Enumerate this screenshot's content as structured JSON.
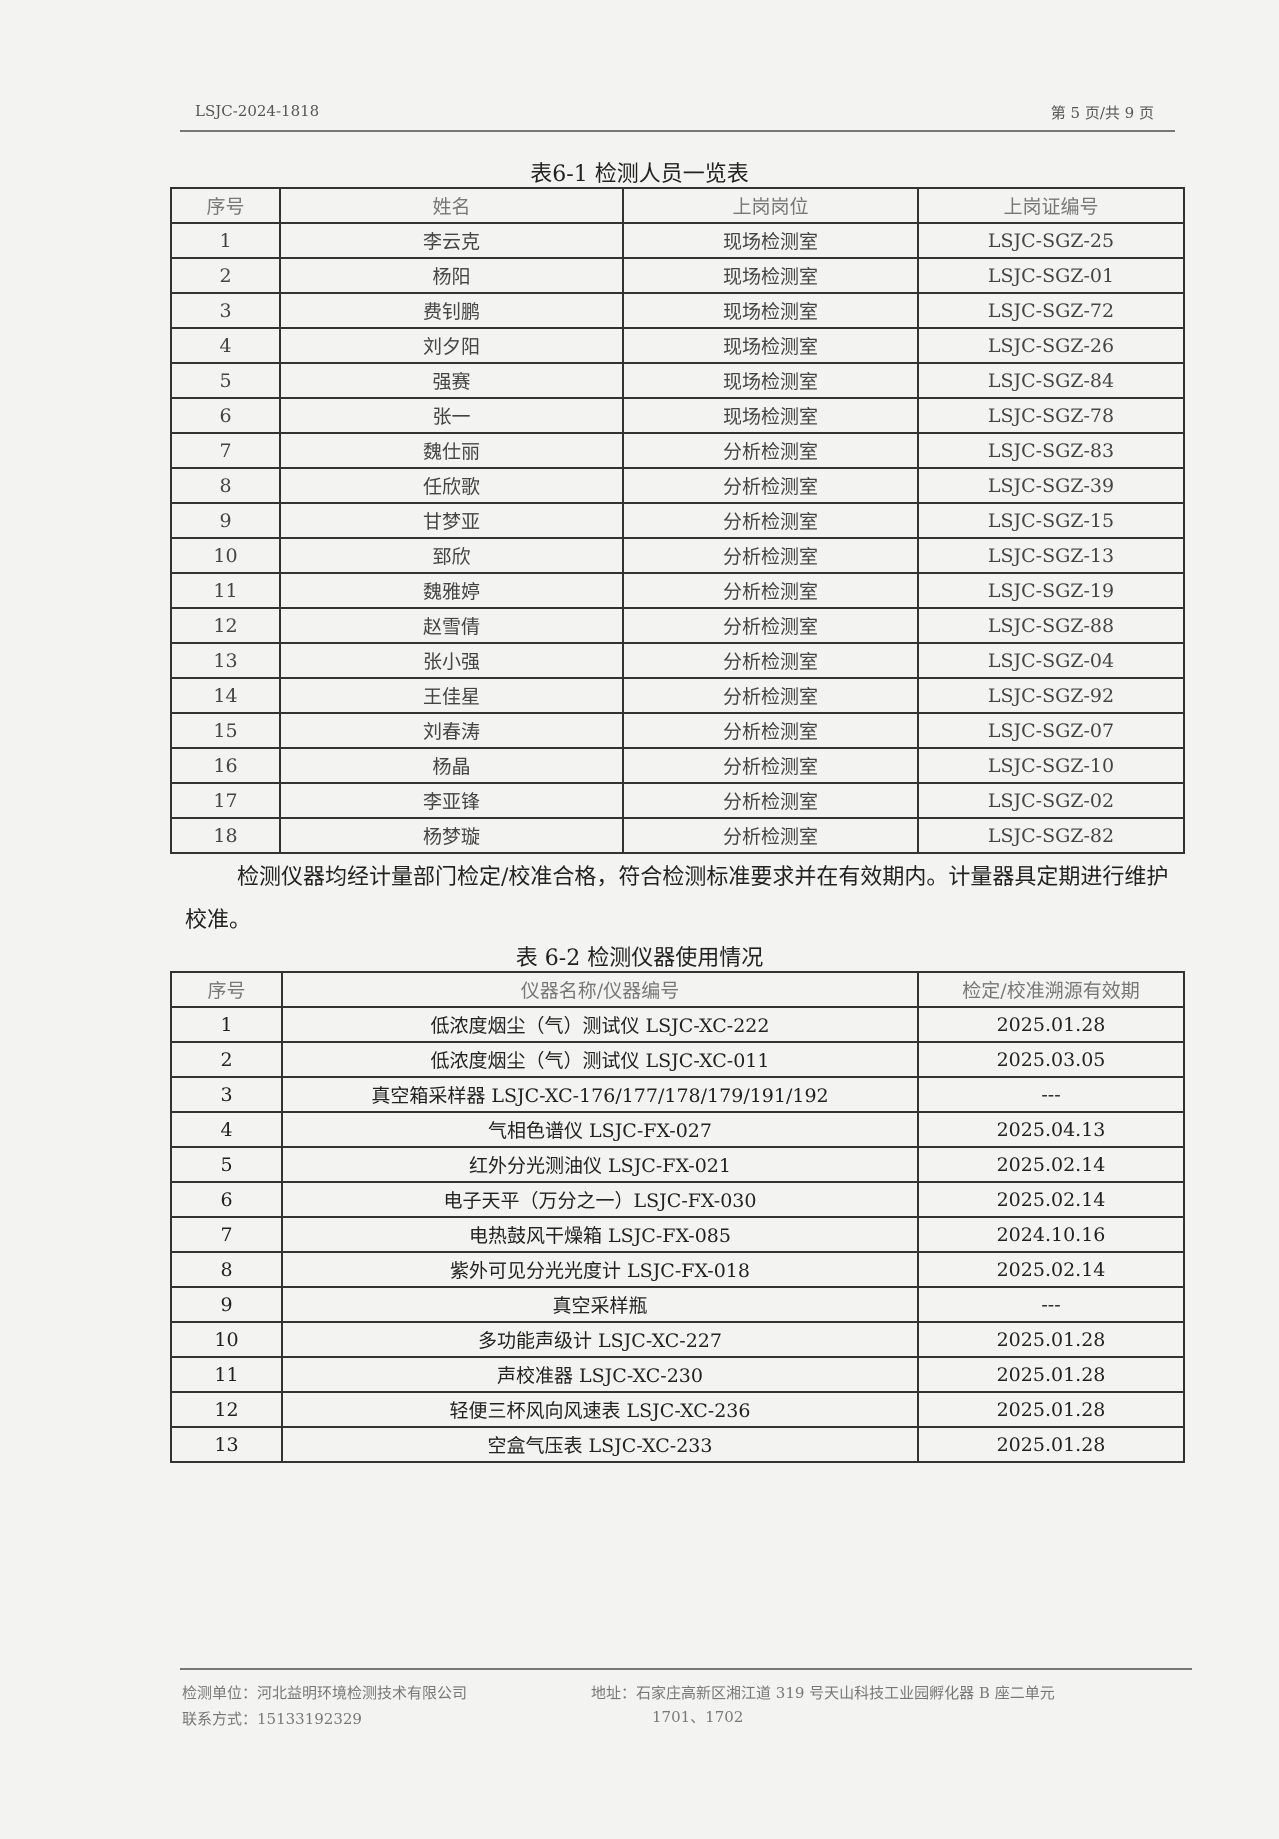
{
  "header": {
    "doc_no": "LSJC-2024-1818",
    "page": "第 5 页/共 9 页"
  },
  "table1": {
    "title": "表6-1 检测人员一览表",
    "columns": [
      "序号",
      "姓名",
      "上岗岗位",
      "上岗证编号"
    ],
    "rows": [
      [
        "1",
        "李云克",
        "现场检测室",
        "LSJC-SGZ-25"
      ],
      [
        "2",
        "杨阳",
        "现场检测室",
        "LSJC-SGZ-01"
      ],
      [
        "3",
        "费钊鹏",
        "现场检测室",
        "LSJC-SGZ-72"
      ],
      [
        "4",
        "刘夕阳",
        "现场检测室",
        "LSJC-SGZ-26"
      ],
      [
        "5",
        "强赛",
        "现场检测室",
        "LSJC-SGZ-84"
      ],
      [
        "6",
        "张一",
        "现场检测室",
        "LSJC-SGZ-78"
      ],
      [
        "7",
        "魏仕丽",
        "分析检测室",
        "LSJC-SGZ-83"
      ],
      [
        "8",
        "任欣歌",
        "分析检测室",
        "LSJC-SGZ-39"
      ],
      [
        "9",
        "甘梦亚",
        "分析检测室",
        "LSJC-SGZ-15"
      ],
      [
        "10",
        "郅欣",
        "分析检测室",
        "LSJC-SGZ-13"
      ],
      [
        "11",
        "魏雅婷",
        "分析检测室",
        "LSJC-SGZ-19"
      ],
      [
        "12",
        "赵雪倩",
        "分析检测室",
        "LSJC-SGZ-88"
      ],
      [
        "13",
        "张小强",
        "分析检测室",
        "LSJC-SGZ-04"
      ],
      [
        "14",
        "王佳星",
        "分析检测室",
        "LSJC-SGZ-92"
      ],
      [
        "15",
        "刘春涛",
        "分析检测室",
        "LSJC-SGZ-07"
      ],
      [
        "16",
        "杨晶",
        "分析检测室",
        "LSJC-SGZ-10"
      ],
      [
        "17",
        "李亚锋",
        "分析检测室",
        "LSJC-SGZ-02"
      ],
      [
        "18",
        "杨梦璇",
        "分析检测室",
        "LSJC-SGZ-82"
      ]
    ]
  },
  "paragraph": "检测仪器均经计量部门检定/校准合格，符合检测标准要求并在有效期内。计量器具定期进行维护校准。",
  "table2": {
    "title": "表 6-2 检测仪器使用情况",
    "columns": [
      "序号",
      "仪器名称/仪器编号",
      "检定/校准溯源有效期"
    ],
    "rows": [
      [
        "1",
        "低浓度烟尘（气）测试仪 LSJC-XC-222",
        "2025.01.28"
      ],
      [
        "2",
        "低浓度烟尘（气）测试仪 LSJC-XC-011",
        "2025.03.05"
      ],
      [
        "3",
        "真空箱采样器 LSJC-XC-176/177/178/179/191/192",
        "---"
      ],
      [
        "4",
        "气相色谱仪 LSJC-FX-027",
        "2025.04.13"
      ],
      [
        "5",
        "红外分光测油仪 LSJC-FX-021",
        "2025.02.14"
      ],
      [
        "6",
        "电子天平（万分之一）LSJC-FX-030",
        "2025.02.14"
      ],
      [
        "7",
        "电热鼓风干燥箱 LSJC-FX-085",
        "2024.10.16"
      ],
      [
        "8",
        "紫外可见分光光度计 LSJC-FX-018",
        "2025.02.14"
      ],
      [
        "9",
        "真空采样瓶",
        "---"
      ],
      [
        "10",
        "多功能声级计 LSJC-XC-227",
        "2025.01.28"
      ],
      [
        "11",
        "声校准器 LSJC-XC-230",
        "2025.01.28"
      ],
      [
        "12",
        "轻便三杯风向风速表 LSJC-XC-236",
        "2025.01.28"
      ],
      [
        "13",
        "空盒气压表 LSJC-XC-233",
        "2025.01.28"
      ]
    ]
  },
  "footer": {
    "unit": "检测单位：河北益明环境检测技术有限公司",
    "contact": "联系方式：15133192329",
    "address": "地址：石家庄高新区湘江道 319 号天山科技工业园孵化器 B 座二单元",
    "address2": "1701、1702"
  }
}
